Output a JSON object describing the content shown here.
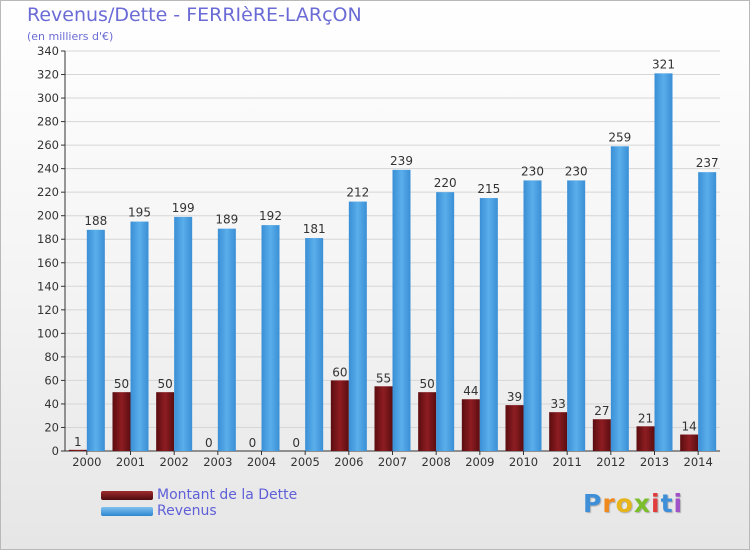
{
  "header": {
    "title": "Revenus/Dette - FERRIèRE-LARçON",
    "subtitle": "(en milliers d'€)"
  },
  "legend": {
    "items": [
      {
        "label": "Montant de la Dette",
        "color": "#7a1418"
      },
      {
        "label": "Revenus",
        "color": "#4aa3e3"
      }
    ]
  },
  "logo": {
    "text": "Proxiti"
  },
  "chart_data": {
    "type": "bar",
    "categories": [
      "2000",
      "2001",
      "2002",
      "2003",
      "2004",
      "2005",
      "2006",
      "2007",
      "2008",
      "2009",
      "2010",
      "2011",
      "2012",
      "2013",
      "2014"
    ],
    "series": [
      {
        "name": "Montant de la Dette",
        "color": "#7a1418",
        "values": [
          1,
          50,
          50,
          0,
          0,
          0,
          60,
          55,
          50,
          44,
          39,
          33,
          27,
          21,
          14
        ]
      },
      {
        "name": "Revenus",
        "color": "#4aa3e3",
        "values": [
          188,
          195,
          199,
          189,
          192,
          181,
          212,
          239,
          220,
          215,
          230,
          230,
          259,
          321,
          237
        ]
      }
    ],
    "ylim": [
      0,
      340
    ],
    "yticks": [
      0,
      20,
      40,
      60,
      80,
      100,
      120,
      140,
      160,
      180,
      200,
      220,
      240,
      260,
      280,
      300,
      320,
      340
    ],
    "grid": true,
    "legend_position": "bottom-left"
  }
}
